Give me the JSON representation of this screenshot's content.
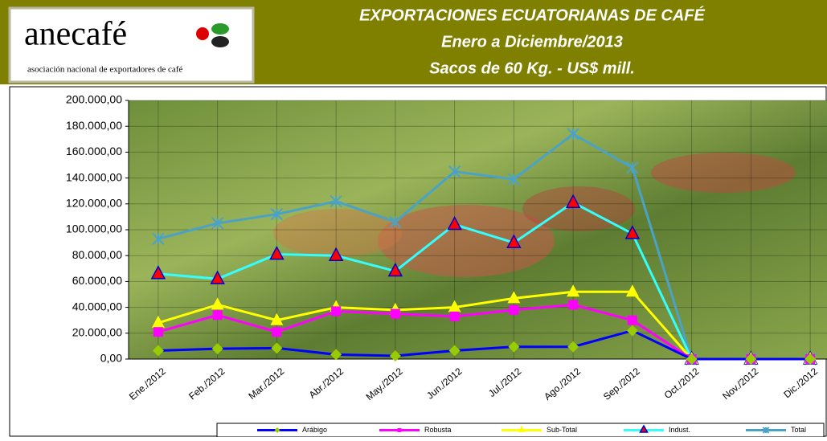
{
  "logo": {
    "name": "anecafé",
    "tagline": "asociación nacional de exportadores de café"
  },
  "chart_data": {
    "type": "line",
    "title": [
      "EXPORTACIONES ECUATORIANAS DE CAFÉ",
      "Enero a Diciembre/2013",
      "Sacos de 60 Kg. - US$ mill."
    ],
    "categories": [
      "Ene./2012",
      "Feb./2012",
      "Mar./2012",
      "Abr./2012",
      "May./2012",
      "Jun./2012",
      "Jul./2012",
      "Ago./2012",
      "Sep./2012",
      "Oct./2012",
      "Nov./2012",
      "Dic./2012"
    ],
    "series": [
      {
        "name": "Total",
        "color": "#4aa3c6",
        "marker": "star",
        "marker_color": "#4aa3c6",
        "values": [
          93000,
          105000,
          112000,
          122000,
          106000,
          145000,
          139000,
          174000,
          148000,
          0,
          0,
          0
        ]
      },
      {
        "name": "Indust.",
        "color": "#33ffff",
        "marker": "triangle",
        "marker_color": "#ff0000",
        "values": [
          66000,
          62000,
          81000,
          80000,
          68000,
          104000,
          90000,
          121000,
          97000,
          0,
          0,
          0
        ]
      },
      {
        "name": "Sub-Total",
        "color": "#ffff00",
        "marker": "triangle",
        "marker_color": "#ffff00",
        "values": [
          28000,
          42000,
          30000,
          40000,
          38000,
          40000,
          47000,
          52000,
          52000,
          0,
          0,
          0
        ]
      },
      {
        "name": "Robusta",
        "color": "#ff00ff",
        "marker": "square",
        "marker_color": "#ff00ff",
        "values": [
          21000,
          34000,
          21000,
          37000,
          35000,
          33000,
          38000,
          42000,
          30000,
          0,
          0,
          0
        ]
      },
      {
        "name": "Arábigo",
        "color": "#0000ff",
        "marker": "diamond",
        "marker_color": "#99cc00",
        "values": [
          6500,
          8000,
          8500,
          3500,
          2500,
          6500,
          9500,
          9500,
          22000,
          0,
          0,
          0
        ]
      }
    ],
    "legend_order": [
      4,
      3,
      2,
      1,
      0
    ],
    "ylim": [
      0,
      200000
    ],
    "yticks": [
      {
        "value": 0,
        "label": "0,00"
      },
      {
        "value": 20000,
        "label": "20.000,00"
      },
      {
        "value": 40000,
        "label": "40.000,00"
      },
      {
        "value": 60000,
        "label": "60.000,00"
      },
      {
        "value": 80000,
        "label": "80.000,00"
      },
      {
        "value": 100000,
        "label": "100.000,00"
      },
      {
        "value": 120000,
        "label": "120.000,00"
      },
      {
        "value": 140000,
        "label": "140.000,00"
      },
      {
        "value": 160000,
        "label": "160.000,00"
      },
      {
        "value": 180000,
        "label": "180.000,00"
      },
      {
        "value": 200000,
        "label": "200.000,00"
      }
    ],
    "grid": true
  }
}
